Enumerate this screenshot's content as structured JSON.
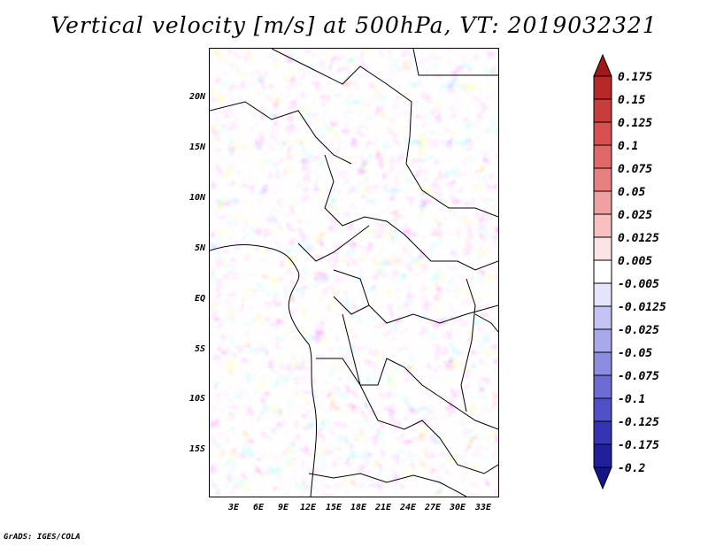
{
  "title": "Vertical velocity [m/s] at 500hPa, VT: 2019032321",
  "footer": "GrADS: IGES/COLA",
  "y_axis_labels": [
    "20N",
    "15N",
    "10N",
    "5N",
    "EQ",
    "5S",
    "10S",
    "15S"
  ],
  "x_axis_labels": [
    "3E",
    "6E",
    "9E",
    "12E",
    "15E",
    "18E",
    "21E",
    "24E",
    "27E",
    "30E",
    "33E"
  ],
  "colorbar": {
    "labels": [
      "0.175",
      "0.15",
      "0.125",
      "0.1",
      "0.075",
      "0.05",
      "0.025",
      "0.0125",
      "0.005",
      "-0.005",
      "-0.0125",
      "-0.025",
      "-0.05",
      "-0.075",
      "-0.1",
      "-0.125",
      "-0.175",
      "-0.2"
    ],
    "colors": [
      "#a01818",
      "#b82828",
      "#c83c3c",
      "#d85050",
      "#e06868",
      "#e88080",
      "#f0a0a0",
      "#f8c0c0",
      "#fce4e4",
      "#ffffff",
      "#e4e4fc",
      "#c4c4f4",
      "#a8a8ec",
      "#8c8ce0",
      "#6c6cd4",
      "#5050c8",
      "#3434b4",
      "#20209c",
      "#14148c"
    ]
  }
}
